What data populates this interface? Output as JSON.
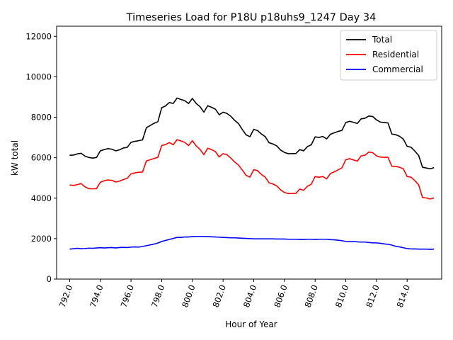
{
  "chart_data": {
    "type": "line",
    "title": "Timeseries Load for P18U p18uhs9_1247  Day 34",
    "xlabel": "Hour of Year",
    "ylabel": "kW total",
    "xlim": [
      791.15,
      816.25
    ],
    "ylim": [
      0,
      12500
    ],
    "x_ticks": [
      792,
      794,
      796,
      798,
      800,
      802,
      804,
      806,
      808,
      810,
      812,
      814
    ],
    "x_tick_labels": [
      "792.0",
      "794.0",
      "796.0",
      "798.0",
      "800.0",
      "802.0",
      "804.0",
      "806.0",
      "808.0",
      "810.0",
      "812.0",
      "814.0"
    ],
    "y_ticks": [
      0,
      2000,
      4000,
      6000,
      8000,
      10000,
      12000
    ],
    "y_tick_labels": [
      "0",
      "2000",
      "4000",
      "6000",
      "8000",
      "10000",
      "12000"
    ],
    "legend_position": "top-right",
    "x_start": 792,
    "x_step": 0.25,
    "series": [
      {
        "name": "Total",
        "color": "#000000",
        "values": [
          6120,
          6130,
          6190,
          6220,
          6080,
          6010,
          5980,
          6010,
          6340,
          6400,
          6450,
          6420,
          6340,
          6390,
          6480,
          6510,
          6760,
          6810,
          6840,
          6880,
          7480,
          7590,
          7700,
          7780,
          8470,
          8560,
          8730,
          8680,
          8950,
          8880,
          8820,
          8680,
          8930,
          8680,
          8520,
          8250,
          8570,
          8490,
          8400,
          8120,
          8250,
          8190,
          8050,
          7850,
          7690,
          7400,
          7130,
          7040,
          7400,
          7340,
          7170,
          7040,
          6740,
          6680,
          6580,
          6380,
          6260,
          6200,
          6200,
          6210,
          6400,
          6340,
          6550,
          6640,
          7030,
          7000,
          7050,
          6930,
          7160,
          7230,
          7300,
          7350,
          7740,
          7800,
          7750,
          7690,
          7920,
          7950,
          8060,
          8040,
          7870,
          7760,
          7740,
          7720,
          7170,
          7140,
          7060,
          6920,
          6560,
          6520,
          6330,
          6110,
          5530,
          5490,
          5450,
          5510
        ]
      },
      {
        "name": "Residential",
        "color": "#ff0000",
        "values": [
          4650,
          4630,
          4670,
          4720,
          4560,
          4470,
          4460,
          4470,
          4790,
          4860,
          4900,
          4880,
          4800,
          4840,
          4920,
          4980,
          5200,
          5250,
          5280,
          5290,
          5840,
          5900,
          5960,
          6020,
          6600,
          6650,
          6750,
          6640,
          6890,
          6830,
          6760,
          6600,
          6840,
          6580,
          6410,
          6150,
          6470,
          6400,
          6300,
          6040,
          6200,
          6150,
          5990,
          5790,
          5640,
          5390,
          5130,
          5040,
          5410,
          5360,
          5170,
          5040,
          4760,
          4700,
          4610,
          4410,
          4280,
          4230,
          4230,
          4240,
          4450,
          4390,
          4590,
          4690,
          5070,
          5030,
          5070,
          4950,
          5220,
          5300,
          5400,
          5500,
          5900,
          5950,
          5890,
          5830,
          6090,
          6120,
          6280,
          6250,
          6090,
          6030,
          6020,
          6020,
          5580,
          5570,
          5530,
          5450,
          5070,
          5040,
          4870,
          4660,
          4030,
          4010,
          3960,
          4010
        ]
      },
      {
        "name": "Commercial",
        "color": "#0000ff",
        "values": [
          1480,
          1500,
          1520,
          1500,
          1510,
          1530,
          1520,
          1540,
          1550,
          1540,
          1550,
          1560,
          1540,
          1560,
          1570,
          1560,
          1580,
          1590,
          1580,
          1610,
          1650,
          1690,
          1730,
          1780,
          1860,
          1910,
          1960,
          2010,
          2060,
          2060,
          2080,
          2080,
          2100,
          2110,
          2110,
          2110,
          2100,
          2090,
          2080,
          2070,
          2060,
          2050,
          2040,
          2040,
          2030,
          2020,
          2010,
          2000,
          1990,
          1990,
          1990,
          1990,
          1990,
          1990,
          1980,
          1980,
          1980,
          1970,
          1970,
          1970,
          1960,
          1960,
          1970,
          1970,
          1960,
          1970,
          1970,
          1970,
          1950,
          1940,
          1920,
          1900,
          1860,
          1850,
          1860,
          1840,
          1830,
          1830,
          1810,
          1790,
          1790,
          1770,
          1740,
          1720,
          1680,
          1620,
          1590,
          1550,
          1510,
          1490,
          1490,
          1480,
          1480,
          1480,
          1470,
          1480
        ]
      }
    ]
  }
}
